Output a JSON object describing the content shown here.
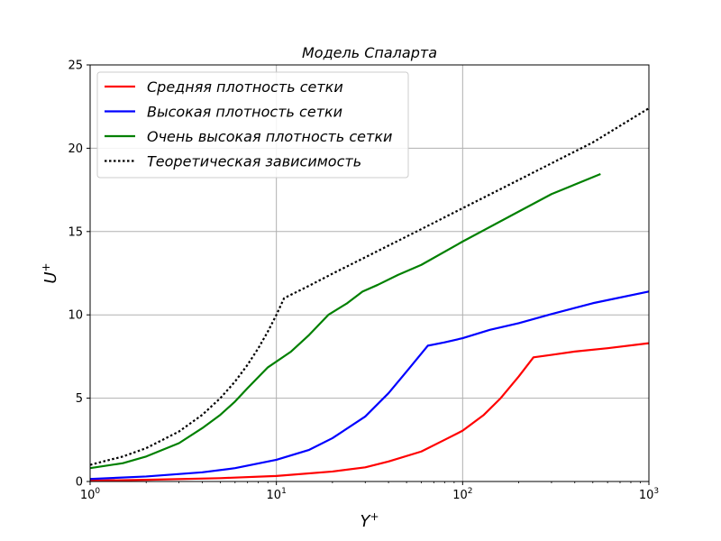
{
  "chart_data": {
    "type": "line",
    "title": "Модель Спаларта",
    "xlabel": "Y",
    "xlabel_sup": "+",
    "ylabel": "U",
    "ylabel_sup": "+",
    "x_scale": "log",
    "xlim": [
      1,
      1000
    ],
    "ylim": [
      0,
      25
    ],
    "grid": true,
    "legend_position": "top-left",
    "x_ticks": [
      {
        "value": 1,
        "base": "10",
        "exp": "0"
      },
      {
        "value": 10,
        "base": "10",
        "exp": "1"
      },
      {
        "value": 100,
        "base": "10",
        "exp": "2"
      },
      {
        "value": 1000,
        "base": "10",
        "exp": "3"
      }
    ],
    "y_ticks": [
      0,
      5,
      10,
      15,
      20,
      25
    ],
    "series": [
      {
        "name": "Средняя плотность сетки",
        "color": "#ff0000",
        "style": "solid",
        "points": [
          [
            1,
            0.05
          ],
          [
            2,
            0.1
          ],
          [
            5,
            0.2
          ],
          [
            10,
            0.33
          ],
          [
            20,
            0.6
          ],
          [
            30,
            0.85
          ],
          [
            40,
            1.2
          ],
          [
            60,
            1.8
          ],
          [
            80,
            2.5
          ],
          [
            100,
            3.05
          ],
          [
            130,
            4.0
          ],
          [
            160,
            5.0
          ],
          [
            200,
            6.3
          ],
          [
            240,
            7.45
          ],
          [
            300,
            7.6
          ],
          [
            400,
            7.8
          ],
          [
            600,
            8.0
          ],
          [
            1000,
            8.3
          ]
        ]
      },
      {
        "name": "Высокая плотность сетки",
        "color": "#0000ff",
        "style": "solid",
        "points": [
          [
            1,
            0.15
          ],
          [
            2,
            0.3
          ],
          [
            4,
            0.55
          ],
          [
            6,
            0.8
          ],
          [
            10,
            1.3
          ],
          [
            15,
            1.9
          ],
          [
            20,
            2.6
          ],
          [
            30,
            3.9
          ],
          [
            40,
            5.3
          ],
          [
            50,
            6.6
          ],
          [
            65,
            8.15
          ],
          [
            80,
            8.35
          ],
          [
            100,
            8.6
          ],
          [
            140,
            9.1
          ],
          [
            200,
            9.5
          ],
          [
            300,
            10.05
          ],
          [
            500,
            10.7
          ],
          [
            1000,
            11.4
          ]
        ]
      },
      {
        "name": "Очень высокая плотность сетки",
        "color": "#008000",
        "style": "solid",
        "points": [
          [
            1,
            0.8
          ],
          [
            1.5,
            1.1
          ],
          [
            2,
            1.5
          ],
          [
            3,
            2.3
          ],
          [
            4,
            3.2
          ],
          [
            5,
            4.0
          ],
          [
            6,
            4.8
          ],
          [
            7,
            5.6
          ],
          [
            9,
            6.85
          ],
          [
            12,
            7.8
          ],
          [
            15,
            8.8
          ],
          [
            19,
            10.0
          ],
          [
            24,
            10.7
          ],
          [
            29,
            11.4
          ],
          [
            35,
            11.8
          ],
          [
            45,
            12.4
          ],
          [
            60,
            13.0
          ],
          [
            100,
            14.4
          ],
          [
            200,
            16.2
          ],
          [
            300,
            17.25
          ],
          [
            550,
            18.45
          ]
        ]
      },
      {
        "name": "Теоретическая зависимость",
        "color": "#000000",
        "style": "dotted",
        "points": [
          [
            1,
            1.0
          ],
          [
            1.5,
            1.5
          ],
          [
            2,
            2.0
          ],
          [
            3,
            3.0
          ],
          [
            4,
            4.0
          ],
          [
            5,
            5.0
          ],
          [
            6,
            6.0
          ],
          [
            7,
            7.0
          ],
          [
            8,
            8.0
          ],
          [
            9,
            9.0
          ],
          [
            10,
            10.0
          ],
          [
            11,
            11.0
          ],
          [
            15,
            11.75
          ],
          [
            20,
            12.47
          ],
          [
            50,
            14.7
          ],
          [
            100,
            16.4
          ],
          [
            200,
            18.1
          ],
          [
            500,
            20.35
          ],
          [
            1000,
            22.4
          ]
        ]
      }
    ]
  }
}
